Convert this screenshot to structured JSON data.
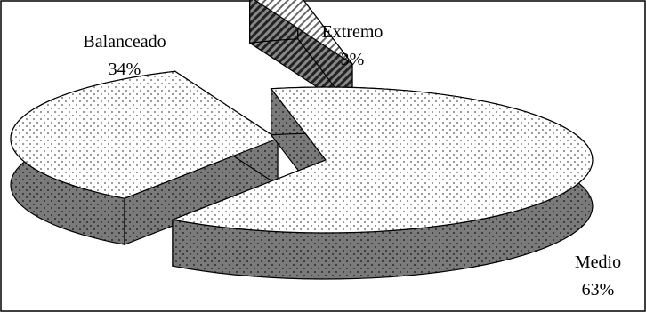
{
  "chart_data": {
    "type": "pie",
    "title": "",
    "slices": [
      {
        "name": "Balanceado",
        "value": 34,
        "value_label": "34%"
      },
      {
        "name": "Extremo",
        "value": 3,
        "value_label": "3%"
      },
      {
        "name": "Medio",
        "value": 63,
        "value_label": "63%"
      }
    ],
    "style": "3d-exploded",
    "legend": "none"
  },
  "colors": {
    "top_fill": "#ffffff",
    "side_fill": "#777777",
    "dots": "#555555",
    "outline": "#000000"
  }
}
